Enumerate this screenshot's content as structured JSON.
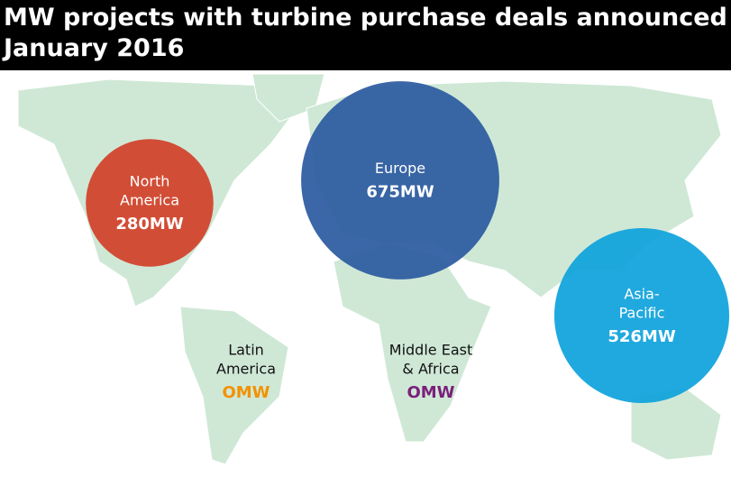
{
  "map_data": {
    "title_lines": [
      "MW projects with turbine purchase deals announced",
      "January 2016"
    ],
    "regions": [
      {
        "name_lines": [
          "North",
          "America"
        ],
        "value": 280,
        "value_label": "280MW",
        "color": "#d2412a"
      },
      {
        "name_lines": [
          "Europe"
        ],
        "value": 675,
        "value_label": "675MW",
        "color": "#2c5aa0"
      },
      {
        "name_lines": [
          "Asia-",
          "Pacific"
        ],
        "value": 526,
        "value_label": "526MW",
        "color": "#0fa3dc"
      },
      {
        "name_lines": [
          "Latin",
          "America"
        ],
        "value": 0,
        "value_label": "OMW",
        "color": "#f39200"
      },
      {
        "name_lines": [
          "Middle East",
          "& Africa"
        ],
        "value": 0,
        "value_label": "OMW",
        "color": "#7b1f7a"
      }
    ]
  }
}
